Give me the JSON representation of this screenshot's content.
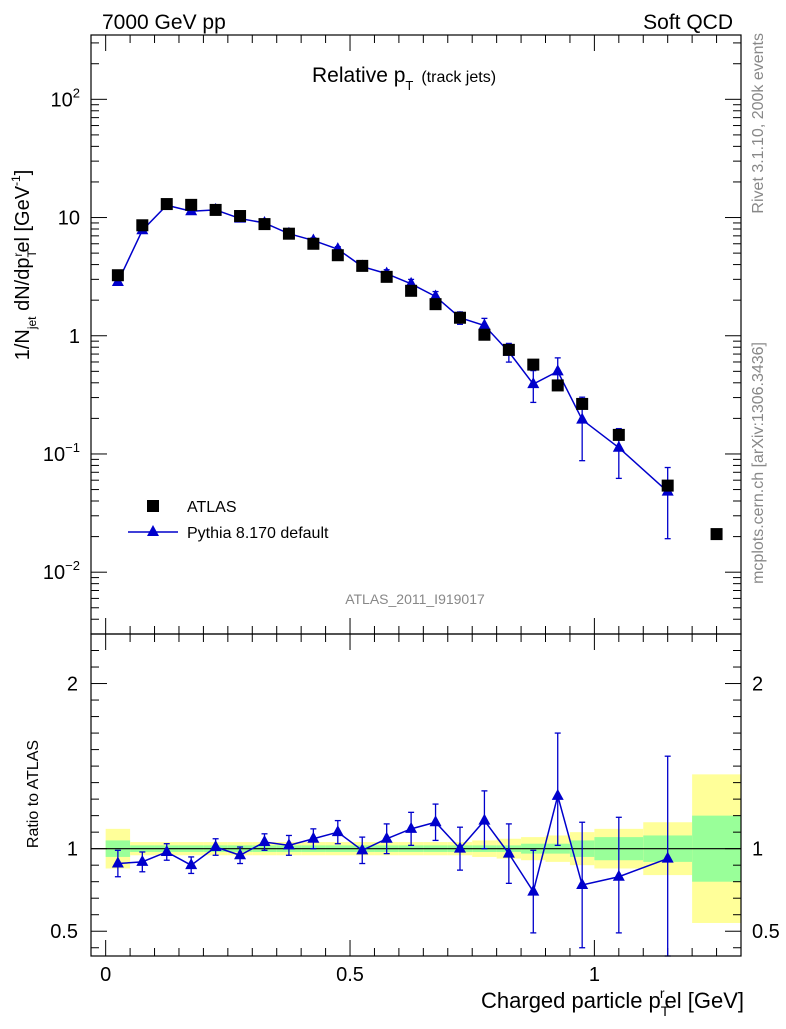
{
  "header": {
    "left": "7000 GeV pp",
    "right": "Soft QCD"
  },
  "side": {
    "rivet": "Rivet 3.1.10,  200k events",
    "mcplots": "mcplots.cern.ch [arXiv:1306.3436]"
  },
  "chart_data": [
    {
      "type": "scatter",
      "title": "Relative p_T (track jets)",
      "title_main": "Relative p",
      "title_sub": "T",
      "title_note": "(track jets)",
      "ylabel": "1/N_jet dN/dp_T^rel [GeV^-1]",
      "ylabel_parts": {
        "a": "1/N",
        "a_sub": "jet",
        "b": " dN/dp",
        "b_sub": "T",
        "b_sup": "r",
        "c": "el [GeV",
        "c_sup": "-1",
        "d": "]"
      },
      "yscale": "log",
      "ylim": [
        0.003,
        350
      ],
      "xlim": [
        -0.03,
        1.3
      ],
      "ytick_labels": [
        {
          "base": "10",
          "exp": "2",
          "value": 100
        },
        {
          "base": "10",
          "exp": "",
          "value": 10
        },
        {
          "base": "1",
          "exp": "",
          "value": 1
        },
        {
          "base": "10",
          "exp": "−1",
          "value": 0.1
        },
        {
          "base": "10",
          "exp": "−2",
          "value": 0.01
        }
      ],
      "watermark": "ATLAS_2011_I919017",
      "legend_position": "bottom-left",
      "series": [
        {
          "name": "ATLAS",
          "marker": "square",
          "color": "#000000",
          "x": [
            0.025,
            0.075,
            0.125,
            0.175,
            0.225,
            0.275,
            0.325,
            0.375,
            0.425,
            0.475,
            0.525,
            0.575,
            0.625,
            0.675,
            0.725,
            0.775,
            0.825,
            0.875,
            0.925,
            0.975,
            1.05,
            1.15,
            1.25
          ],
          "y": [
            3.25,
            8.6,
            13.0,
            12.8,
            11.6,
            10.3,
            8.8,
            7.3,
            6.0,
            4.8,
            3.9,
            3.15,
            2.4,
            1.85,
            1.42,
            1.02,
            0.76,
            0.57,
            0.38,
            0.265,
            0.145,
            0.054,
            0.021
          ]
        },
        {
          "name": "Pythia 8.170 default",
          "marker": "triangle",
          "color": "#0000cc",
          "x": [
            0.025,
            0.075,
            0.125,
            0.175,
            0.225,
            0.275,
            0.325,
            0.375,
            0.425,
            0.475,
            0.525,
            0.575,
            0.625,
            0.675,
            0.725,
            0.775,
            0.825,
            0.875,
            0.925,
            0.975,
            1.05,
            1.15
          ],
          "y": [
            2.85,
            7.8,
            12.7,
            11.3,
            11.6,
            9.8,
            9.0,
            7.3,
            6.4,
            5.4,
            3.85,
            3.35,
            2.75,
            2.15,
            1.42,
            1.22,
            0.73,
            0.39,
            0.5,
            0.195,
            0.113,
            0.048
          ],
          "err_rel": [
            0.04,
            0.04,
            0.04,
            0.04,
            0.04,
            0.04,
            0.04,
            0.04,
            0.05,
            0.05,
            0.06,
            0.08,
            0.09,
            0.1,
            0.12,
            0.15,
            0.18,
            0.3,
            0.3,
            0.55,
            0.45,
            0.6
          ]
        }
      ]
    },
    {
      "type": "scatter",
      "title": "",
      "ylabel": "Ratio to ATLAS",
      "xlabel": "Charged particle p_T^rel [GeV]",
      "xlabel_parts": {
        "a": "Charged particle p",
        "sub": "T",
        "sup": "r",
        "b": "el [GeV]"
      },
      "ylim": [
        0.35,
        2.3
      ],
      "xlim": [
        -0.03,
        1.3
      ],
      "ytick_labels": [
        "2",
        "1",
        "0.5"
      ],
      "yticks": [
        2,
        1,
        0.5
      ],
      "xtick_labels": [
        "0",
        "0.5",
        "1"
      ],
      "xticks": [
        0,
        0.5,
        1
      ],
      "reference_line": 1,
      "bands": {
        "bin_edges": [
          0,
          0.05,
          0.1,
          0.15,
          0.2,
          0.25,
          0.3,
          0.35,
          0.4,
          0.45,
          0.5,
          0.55,
          0.6,
          0.65,
          0.7,
          0.75,
          0.8,
          0.85,
          0.9,
          0.95,
          1.0,
          1.1,
          1.2,
          1.3
        ],
        "stat_half": [
          0.05,
          0.02,
          0.02,
          0.02,
          0.02,
          0.02,
          0.02,
          0.02,
          0.02,
          0.02,
          0.02,
          0.02,
          0.02,
          0.02,
          0.02,
          0.02,
          0.02,
          0.03,
          0.03,
          0.05,
          0.07,
          0.08,
          0.2
        ],
        "total_half": [
          0.12,
          0.04,
          0.04,
          0.04,
          0.04,
          0.04,
          0.04,
          0.04,
          0.04,
          0.04,
          0.04,
          0.04,
          0.04,
          0.04,
          0.04,
          0.05,
          0.06,
          0.07,
          0.08,
          0.1,
          0.12,
          0.16,
          0.45
        ],
        "stat_color": "#99ff99",
        "total_color": "#ffff99"
      },
      "series": [
        {
          "name": "Pythia 8.170 default / ATLAS",
          "marker": "triangle",
          "color": "#0000cc",
          "x": [
            0.025,
            0.075,
            0.125,
            0.175,
            0.225,
            0.275,
            0.325,
            0.375,
            0.425,
            0.475,
            0.525,
            0.575,
            0.625,
            0.675,
            0.725,
            0.775,
            0.825,
            0.875,
            0.925,
            0.975,
            1.05,
            1.15
          ],
          "y": [
            0.91,
            0.92,
            0.98,
            0.9,
            1.01,
            0.96,
            1.04,
            1.02,
            1.06,
            1.1,
            0.99,
            1.06,
            1.12,
            1.16,
            1.0,
            1.17,
            0.97,
            0.74,
            1.32,
            0.78,
            0.83,
            0.94
          ],
          "err_lo": [
            0.08,
            0.06,
            0.05,
            0.05,
            0.05,
            0.05,
            0.05,
            0.06,
            0.06,
            0.07,
            0.08,
            0.09,
            0.1,
            0.11,
            0.13,
            0.17,
            0.18,
            0.25,
            0.3,
            0.38,
            0.34,
            0.62
          ],
          "err_hi": [
            0.08,
            0.06,
            0.05,
            0.05,
            0.05,
            0.05,
            0.05,
            0.06,
            0.06,
            0.07,
            0.08,
            0.09,
            0.1,
            0.11,
            0.13,
            0.18,
            0.18,
            0.25,
            0.38,
            0.38,
            0.36,
            0.62
          ]
        }
      ]
    }
  ]
}
